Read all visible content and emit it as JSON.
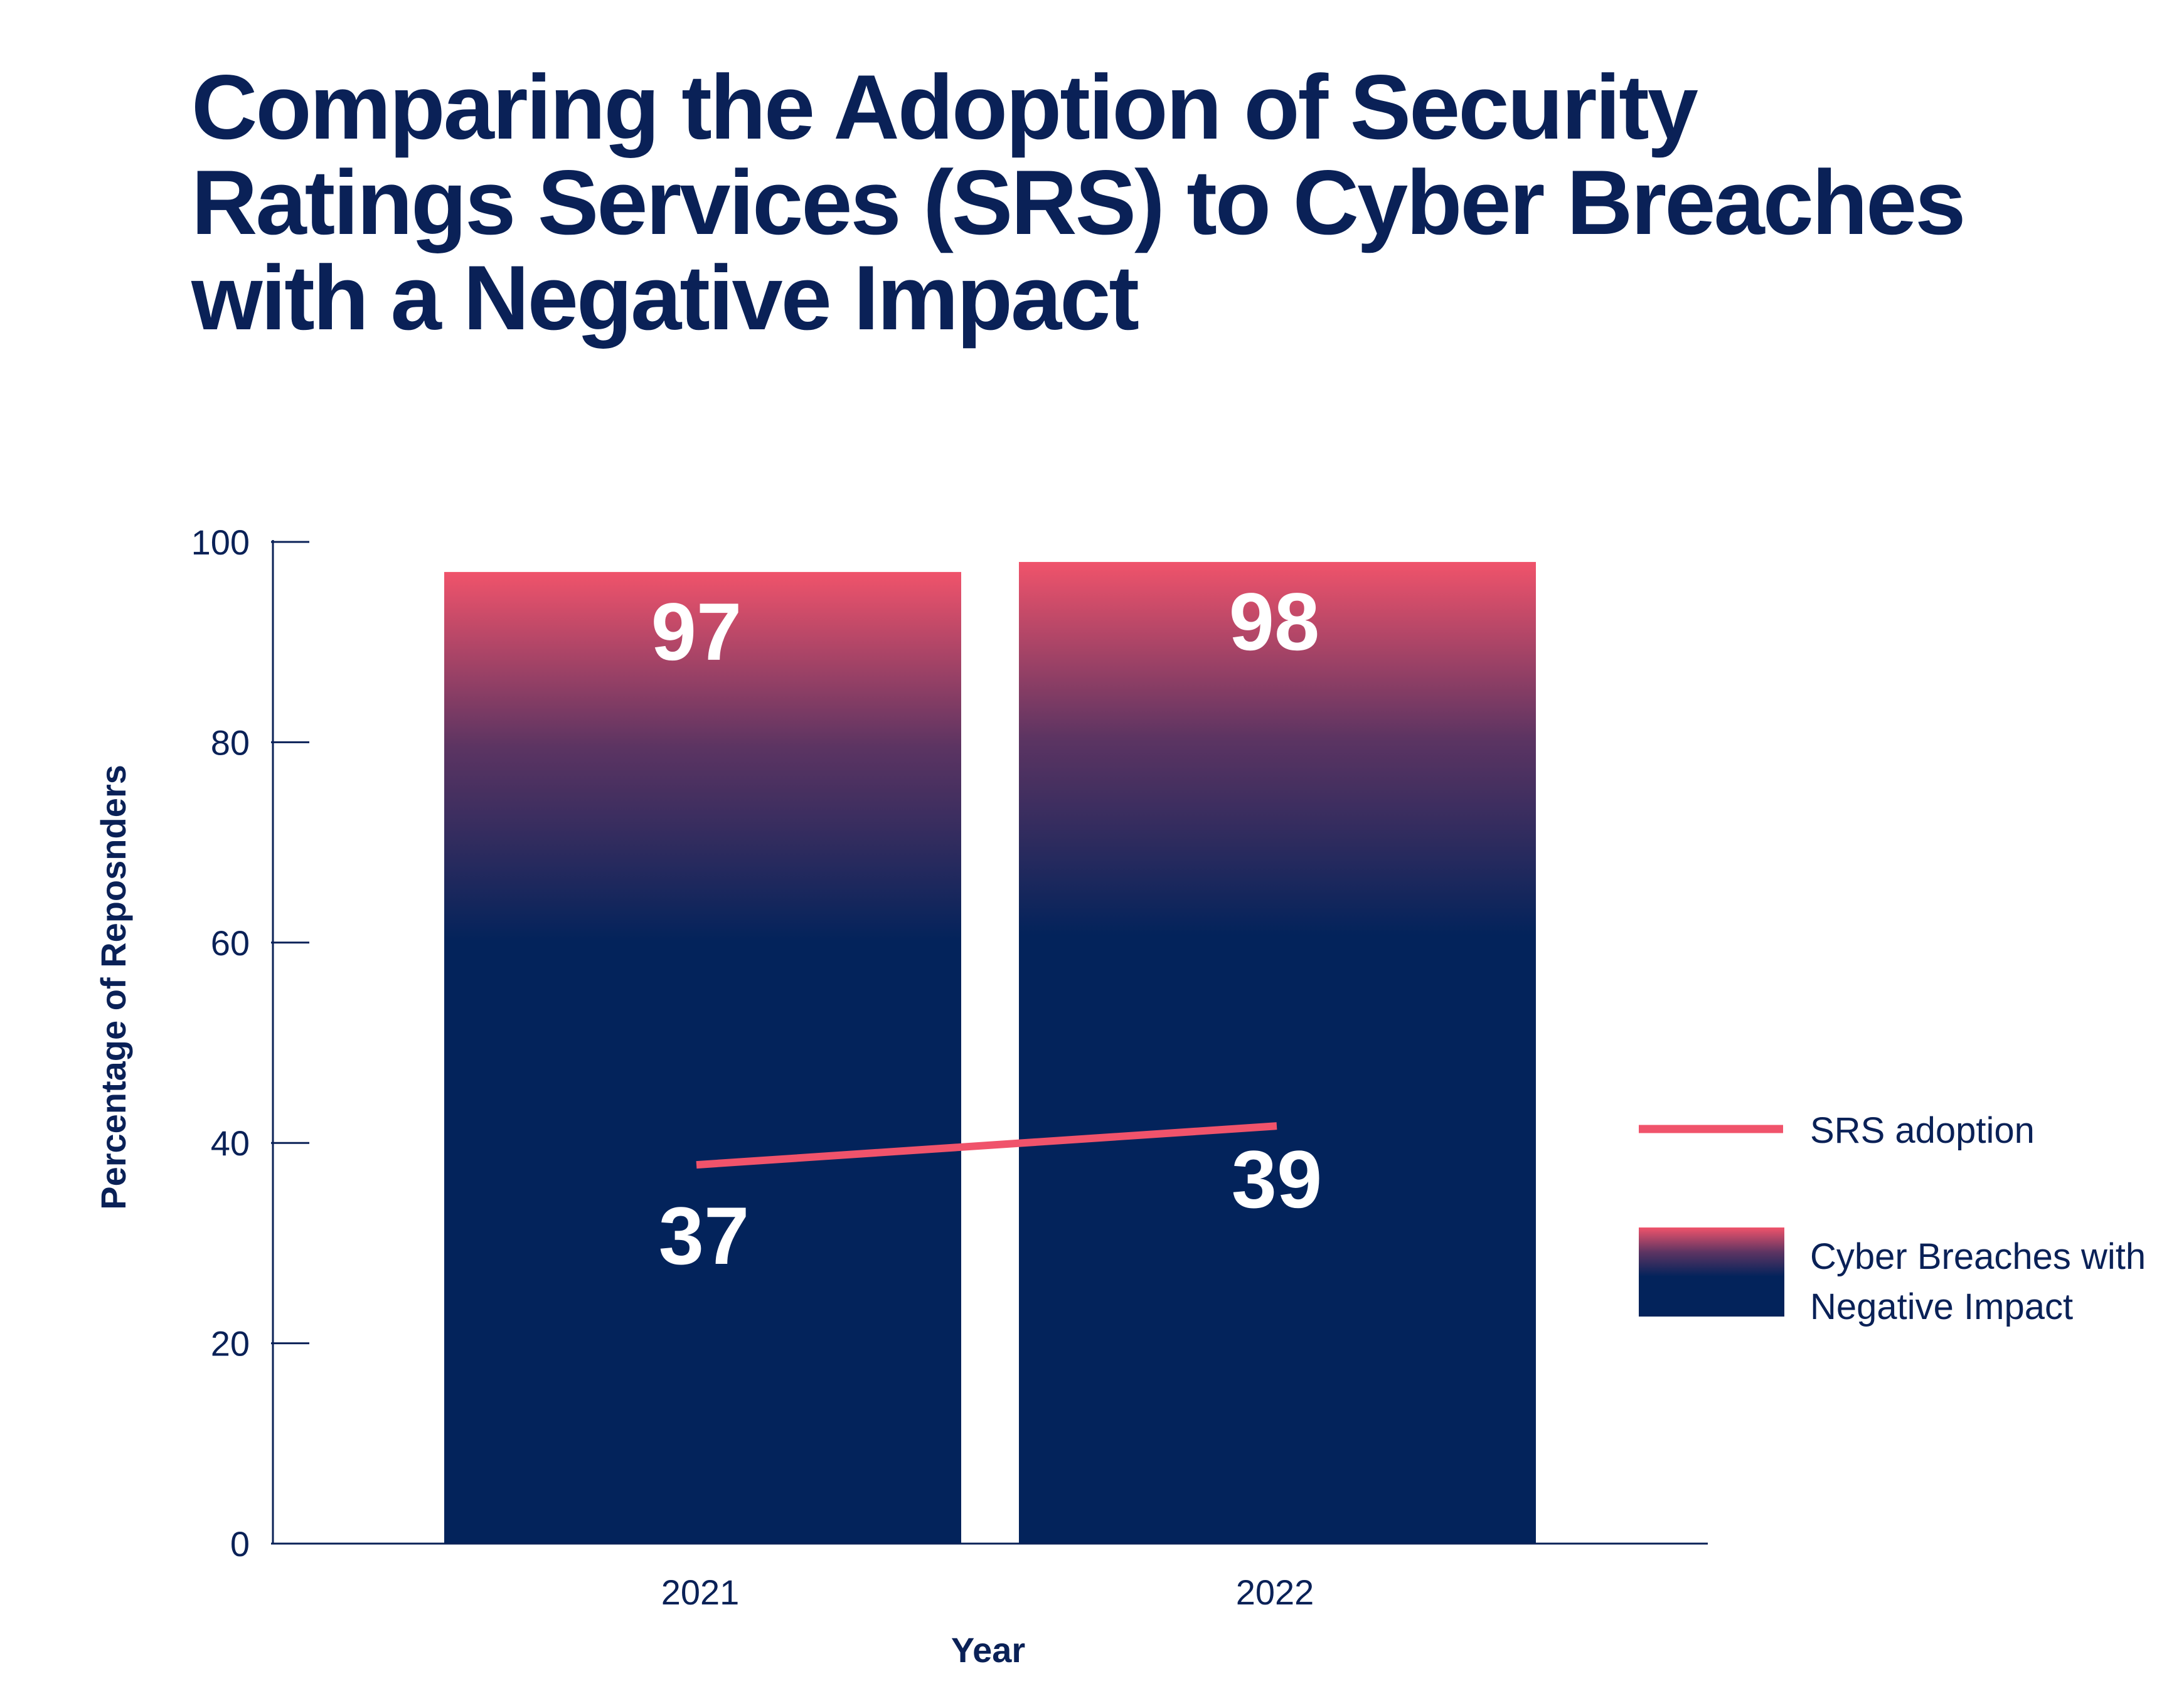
{
  "chart_data": {
    "type": "bar",
    "title": "Comparing the Adoption of Security Ratings Services (SRS) to Cyber Breaches with a Negative Impact",
    "xlabel": "Year",
    "ylabel": "Percentage of Reposnders",
    "categories": [
      "2021",
      "2022"
    ],
    "ylim": [
      0,
      100
    ],
    "yticks": [
      0,
      20,
      40,
      60,
      80,
      100
    ],
    "grid": false,
    "legend_position": "right",
    "series": [
      {
        "name": "Cyber Breaches with Negative Impact",
        "legend_lines": [
          "Cyber Breaches with",
          "Negative Impact"
        ],
        "type": "bar",
        "values": [
          97,
          98
        ],
        "labels": [
          "97",
          "98"
        ]
      },
      {
        "name": "SRS adoption",
        "type": "line",
        "values": [
          37,
          39
        ],
        "labels": [
          "37",
          "39"
        ]
      }
    ],
    "colors": {
      "bar_top": "#f0536b",
      "bar_mid": "#5c3462",
      "bar_bottom": "#03235b",
      "line": "#f0536b",
      "text": "#0a2157",
      "data_label": "#ffffff",
      "axis": "#0a2157"
    }
  }
}
